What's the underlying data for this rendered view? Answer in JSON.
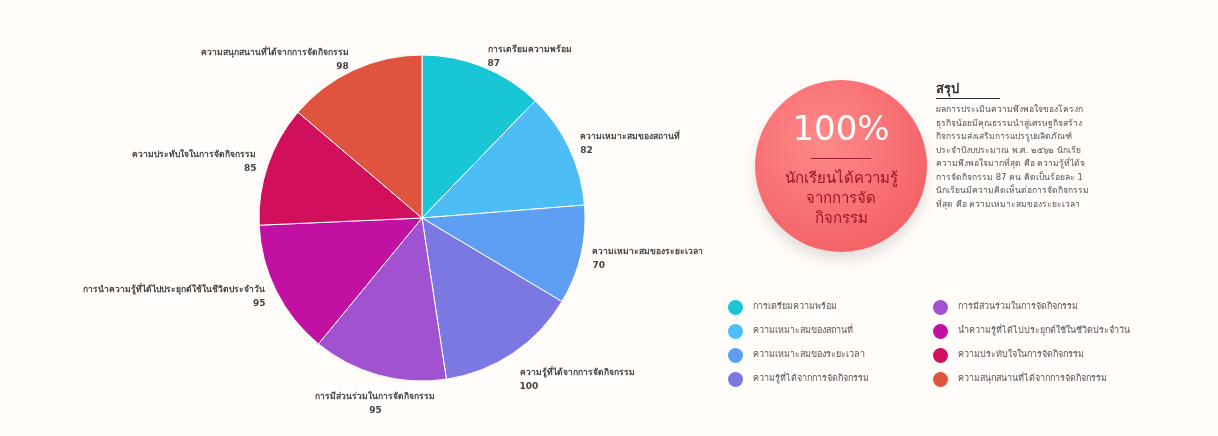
{
  "chart_data": [
    {
      "type": "pie",
      "categories": [
        "การเตรียมความพร้อม",
        "ความเหมาะสมของสถานที่",
        "ความเหมาะสมของระยะเวลา",
        "ความรู้ที่ได้จากการจัดกิจกรรม",
        "การมีส่วนร่วมในการจัดกิจกรรม",
        "นำความรู้ที่ได้ไปประยุกต์ใช้ในชีวิตประจำวัน",
        "ความประทับใจในการจัดกิจกรรม",
        "ความสนุกสนานที่ได้จากการจัดกิจกรรม"
      ],
      "values": [
        87,
        82,
        70,
        100,
        95,
        95,
        85,
        98
      ],
      "colors": [
        "#19c6d6",
        "#4dbdf5",
        "#5c9ff3",
        "#7b78e2",
        "#a052d0",
        "#c210a2",
        "#d20f5c",
        "#e0533f"
      ],
      "data_labels": true,
      "legend": "bottom right",
      "annotations": [
        "การเตรียมความพร้อม",
        "ความเหมาะสมของสถานที่",
        "ความเหมาะสมของระยะเวลา",
        "ความรู้ที่ได้จากการจัดกิจกรรม",
        "การมีส่วนร่วมในการจัดกิจกรรม",
        "การนำความรู้ที่ได้ไปประยุกต์ใช้ในชีวิตประจำวัน",
        "ความประทับใจในการจัดกิจกรรม",
        "ความสนุกสนานที่ได้จากการจัดกิจกรรม"
      ]
    },
    {
      "type": "other",
      "title": "100%",
      "annotations": [
        "นักเรียนได้ความรู้จากการจัดกิจกรรม"
      ]
    },
    {
      "type": "other",
      "title": "สรุป",
      "annotations": [
        "ผลการประเมินความพึงพอใจของโครงก",
        "ธุรกิจน้อยมีคุณธรรมนำสู่เศรษฐกิจสร้าง",
        "กิจกรรมส่งเสริมการแปรรูปผลิตภัณฑ์",
        "ประจำปีงบประมาณ พ.ศ. ๒๕๖๒ นักเรีย",
        "ความพึงพอใจมากที่สุด คือ ความรู้ที่ได้จ",
        "การจัดกิจกรรม 87 คน คิดเป็นร้อยละ 1",
        "นักเรียนมีความคิดเห็นต่อการจัดกิจกรรม",
        "ที่สุด คือ ความเหมาะสมของระยะเวลา"
      ]
    }
  ]
}
